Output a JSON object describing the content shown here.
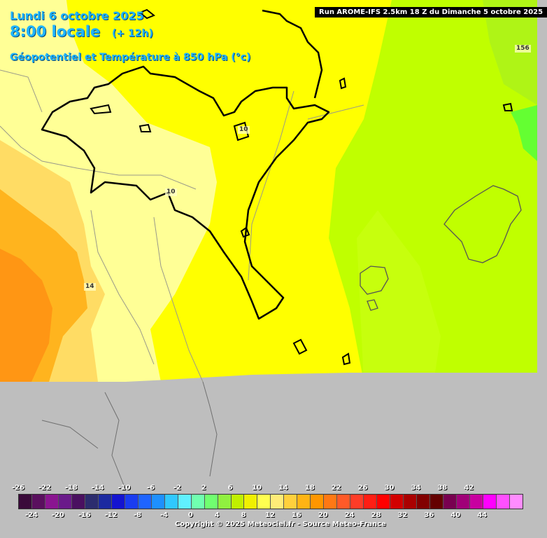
{
  "header": {
    "date": "Lundi 6 octobre 2025",
    "time": "8:00 locale",
    "offset": "(+ 12h)",
    "field": "Géopotentiel et Température à 850 hPa (°c)",
    "run": "Run AROME-IFS 2.5km 18 Z du Dimanche 5 octobre 2025"
  },
  "contour_labels": {
    "c1": "10",
    "c2": "10",
    "c3": "14",
    "c4": "156"
  },
  "legend": {
    "top_ticks": [
      "-26",
      "-22",
      "-18",
      "-14",
      "-10",
      "-6",
      "-2",
      "2",
      "6",
      "10",
      "14",
      "18",
      "22",
      "26",
      "30",
      "34",
      "38",
      "42"
    ],
    "bottom_ticks": [
      "-24",
      "-20",
      "-16",
      "-12",
      "-8",
      "-4",
      "0",
      "4",
      "8",
      "12",
      "16",
      "20",
      "24",
      "28",
      "32",
      "36",
      "40",
      "44"
    ],
    "colors": [
      "#3a0a3a",
      "#5a0f5e",
      "#8a1590",
      "#6a1a8a",
      "#4a1060",
      "#2c2c6e",
      "#1c2aa0",
      "#1414d0",
      "#1a3cf0",
      "#1e64ff",
      "#1e90ff",
      "#30c8ff",
      "#60f0ff",
      "#70ffb0",
      "#70ff70",
      "#90f040",
      "#c0f000",
      "#f0f000",
      "#ffff50",
      "#ffec78",
      "#ffd03c",
      "#ffb414",
      "#ff9600",
      "#ff7814",
      "#ff5a28",
      "#ff3c28",
      "#ff1e14",
      "#ff0000",
      "#d20000",
      "#aa0000",
      "#820000",
      "#640000",
      "#780050",
      "#a00078",
      "#c800a0",
      "#ff00ff",
      "#ff50ff",
      "#ff8cff"
    ]
  },
  "colors": {
    "land_yellow": "#ffff00",
    "sea_lime": "#c0ff00",
    "green_warm": "#64ff32",
    "pale_yellow": "#ffff96",
    "light_orange": "#ffdc64",
    "orange": "#ffb41e",
    "dark_orange": "#ff9614",
    "no_data": "#bebebe"
  },
  "copyright": "Copyright © 2025 Meteociel.fr - Source Meteo-France"
}
